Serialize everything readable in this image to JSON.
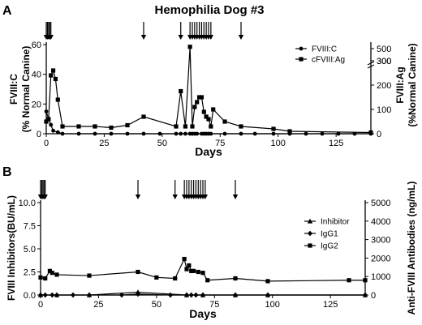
{
  "chart_data": [
    {
      "panel": "A",
      "type": "line",
      "title": "Hemophilia Dog #3",
      "xlabel": "Days",
      "ylabel_left": [
        "FVIII:C",
        "(% Normal Canine)"
      ],
      "ylabel_right": [
        "FVIII:Ag",
        "(%Normal Canine)"
      ],
      "xlim": [
        0,
        140
      ],
      "ylim_left": [
        0,
        60
      ],
      "xticks": [
        "0",
        "25",
        "50",
        "75",
        "100",
        "125"
      ],
      "yticks_left": [
        "0",
        "20",
        "40",
        "60"
      ],
      "yticks_right": [
        "0",
        "100",
        "200",
        "300",
        "300",
        "500"
      ],
      "right_axis_break": true,
      "arrows": [
        0,
        0.5,
        1,
        1.5,
        2,
        42,
        58,
        62,
        63,
        64,
        65,
        66,
        67,
        68,
        69,
        70,
        71,
        84
      ],
      "series": [
        {
          "name": "FVIII:C",
          "axis": "left",
          "marker": "circle",
          "x": [
            0,
            1,
            2,
            3,
            5,
            7,
            14,
            21,
            28,
            35,
            42,
            49,
            56,
            58,
            60,
            62,
            63,
            64,
            65,
            67,
            68,
            69,
            70,
            71,
            77,
            84,
            90,
            98,
            105,
            112,
            119,
            126,
            133,
            140
          ],
          "y": [
            15,
            10,
            6,
            2,
            1,
            0,
            0,
            0,
            0,
            0,
            0,
            0,
            0,
            0,
            0,
            0,
            0,
            0,
            0,
            0,
            0,
            0,
            0,
            0,
            0,
            0,
            0,
            0,
            0,
            0,
            0,
            0,
            0,
            0
          ]
        },
        {
          "name": "cFVIII:Ag",
          "axis": "right",
          "marker": "square",
          "x": [
            0,
            1,
            2,
            3,
            4,
            5,
            7,
            14,
            21,
            28,
            35,
            42,
            56,
            58,
            60,
            62,
            63,
            64,
            65,
            66,
            67,
            68,
            69,
            70,
            71,
            72,
            77,
            84,
            98,
            105,
            140
          ],
          "y": [
            50,
            60,
            240,
            260,
            225,
            140,
            30,
            30,
            30,
            25,
            35,
            70,
            30,
            175,
            30,
            530,
            30,
            110,
            130,
            150,
            150,
            90,
            70,
            60,
            30,
            100,
            50,
            30,
            20,
            10,
            5
          ]
        }
      ]
    },
    {
      "panel": "B",
      "type": "line",
      "xlabel": "Days",
      "ylabel_left": [
        "FVIII Inhibitors(BU/mL)"
      ],
      "ylabel_right": [
        "Anti-FVIII Antibodies (ng/mL)"
      ],
      "xlim": [
        0,
        140
      ],
      "ylim_left": [
        0,
        10
      ],
      "ylim_right": [
        0,
        5000
      ],
      "xticks": [
        "0",
        "25",
        "50",
        "75",
        "100",
        "125"
      ],
      "yticks_left": [
        "0.0",
        "2.5",
        "5.0",
        "7.5",
        "10.0"
      ],
      "yticks_right": [
        "0",
        "1000",
        "2000",
        "3000",
        "4000",
        "5000"
      ],
      "arrows": [
        0,
        0.5,
        1,
        1.5,
        2,
        42,
        58,
        62,
        63,
        64,
        65,
        66,
        67,
        68,
        69,
        70,
        71,
        84
      ],
      "series": [
        {
          "name": "Inhibitor",
          "axis": "left",
          "marker": "triangle",
          "x": [
            0,
            7,
            21,
            42,
            63,
            70,
            84,
            98,
            140
          ],
          "y": [
            0,
            0,
            0,
            0.3,
            0,
            0,
            0,
            0,
            0
          ]
        },
        {
          "name": "IgG1",
          "axis": "right",
          "marker": "diamond",
          "x": [
            0,
            2,
            5,
            7,
            14,
            21,
            35,
            42,
            56,
            63,
            65,
            67,
            70,
            84,
            98,
            140
          ],
          "y": [
            0,
            0,
            0,
            0,
            0,
            0,
            0,
            50,
            0,
            0,
            0,
            0,
            0,
            0,
            0,
            0
          ]
        },
        {
          "name": "IgG2",
          "axis": "right",
          "marker": "square",
          "x": [
            0,
            2,
            4,
            5,
            7,
            21,
            42,
            50,
            58,
            62,
            63,
            64,
            65,
            66,
            68,
            70,
            72,
            84,
            98,
            133,
            140
          ],
          "y": [
            950,
            900,
            1300,
            1200,
            1100,
            1050,
            1250,
            950,
            900,
            1950,
            1400,
            1600,
            1300,
            1300,
            1250,
            1200,
            800,
            900,
            750,
            800,
            800
          ]
        }
      ]
    }
  ]
}
